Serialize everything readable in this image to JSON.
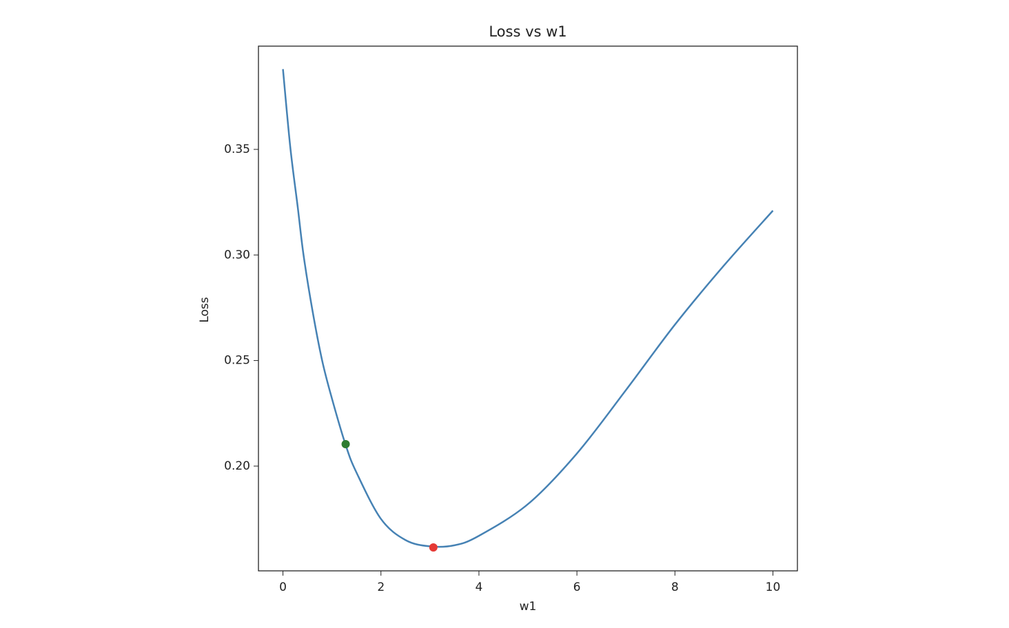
{
  "chart_data": {
    "type": "line",
    "title": "Loss vs w1",
    "x_label": "w1",
    "y_label": "Loss",
    "x": [
      0,
      0.15,
      0.3,
      0.42,
      0.6,
      0.8,
      1,
      1.28,
      1.5,
      2,
      2.5,
      3,
      3.5,
      4,
      5,
      6,
      7,
      8,
      9,
      10
    ],
    "series": [
      {
        "color": "#4682b4",
        "values": [
          0.388,
          0.351,
          0.323,
          0.3,
          0.274,
          0.25,
          0.232,
          0.21,
          0.197,
          0.175,
          0.165,
          0.162,
          0.1625,
          0.167,
          0.182,
          0.206,
          0.236,
          0.267,
          0.295,
          0.321
        ]
      }
    ],
    "points": [
      {
        "x": 1.28,
        "y": 0.2104,
        "color": "#2e7d32"
      },
      {
        "x": 3.07,
        "y": 0.1615,
        "color": "#e53935"
      }
    ],
    "xlim": [
      -0.5,
      10.5
    ],
    "ylim": [
      0.1504,
      0.3989
    ],
    "xticks": [
      0,
      2,
      4,
      6,
      8,
      10
    ],
    "yticks": [
      {
        "value": 0.2,
        "label": "0.20"
      },
      0.25,
      {
        "value": 0.3,
        "label": "0.30"
      },
      0.35
    ],
    "grid": false
  }
}
